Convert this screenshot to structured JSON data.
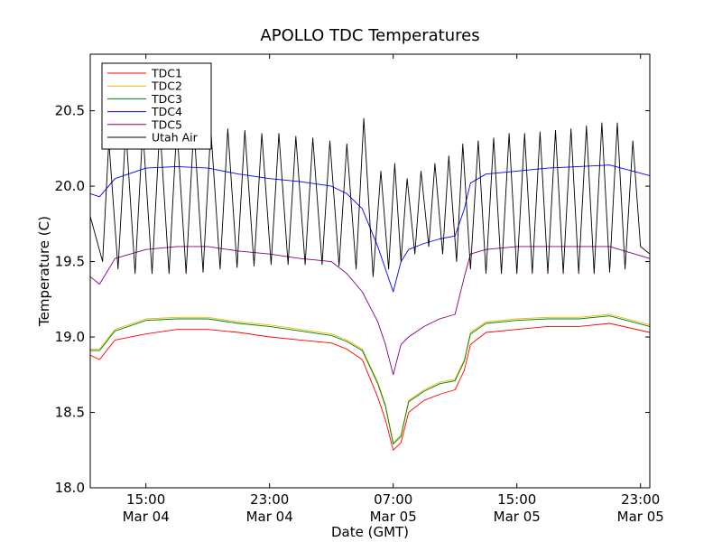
{
  "chart_data": {
    "type": "line",
    "title": "APOLLO TDC Temperatures",
    "xlabel": "Date (GMT)",
    "ylabel": "Temperature (C)",
    "x_unit": "hours since Mar 04 00:00 GMT",
    "xlim": [
      11.4,
      47.6
    ],
    "ylim": [
      18.0,
      20.875
    ],
    "yticks": [
      18.0,
      18.5,
      19.0,
      19.5,
      20.0,
      20.5
    ],
    "ytick_labels": [
      "18.0",
      "18.5",
      "19.0",
      "19.5",
      "20.0",
      "20.5"
    ],
    "xticks": [
      15,
      23,
      31,
      39,
      47
    ],
    "xtick_labels": [
      {
        "time": "15:00",
        "date": "Mar 04"
      },
      {
        "time": "23:00",
        "date": "Mar 04"
      },
      {
        "time": "07:00",
        "date": "Mar 05"
      },
      {
        "time": "15:00",
        "date": "Mar 05"
      },
      {
        "time": "23:00",
        "date": "Mar 05"
      }
    ],
    "grid": false,
    "legend_position": "top-left",
    "series": [
      {
        "name": "TDC1",
        "color": "#ff0000",
        "points": [
          [
            11.4,
            18.88
          ],
          [
            12.0,
            18.85
          ],
          [
            13,
            18.98
          ],
          [
            15,
            19.02
          ],
          [
            17,
            19.05
          ],
          [
            19,
            19.05
          ],
          [
            21,
            19.03
          ],
          [
            23,
            19.0
          ],
          [
            25,
            18.98
          ],
          [
            27,
            18.96
          ],
          [
            28,
            18.92
          ],
          [
            29,
            18.85
          ],
          [
            30,
            18.6
          ],
          [
            30.5,
            18.45
          ],
          [
            31,
            18.25
          ],
          [
            31.5,
            18.3
          ],
          [
            32,
            18.5
          ],
          [
            33,
            18.58
          ],
          [
            34,
            18.62
          ],
          [
            35,
            18.65
          ],
          [
            35.6,
            18.78
          ],
          [
            36,
            18.95
          ],
          [
            37,
            19.03
          ],
          [
            39,
            19.05
          ],
          [
            41,
            19.07
          ],
          [
            43,
            19.07
          ],
          [
            45,
            19.09
          ],
          [
            47.6,
            19.03
          ]
        ]
      },
      {
        "name": "TDC2",
        "color": "#e8b800",
        "points": [
          [
            11.4,
            18.92
          ],
          [
            12.0,
            18.92
          ],
          [
            13,
            19.05
          ],
          [
            15,
            19.12
          ],
          [
            17,
            19.13
          ],
          [
            19,
            19.13
          ],
          [
            21,
            19.1
          ],
          [
            23,
            19.08
          ],
          [
            25,
            19.05
          ],
          [
            27,
            19.02
          ],
          [
            28,
            18.98
          ],
          [
            29,
            18.92
          ],
          [
            30,
            18.7
          ],
          [
            30.5,
            18.55
          ],
          [
            31,
            18.3
          ],
          [
            31.5,
            18.35
          ],
          [
            32,
            18.58
          ],
          [
            33,
            18.65
          ],
          [
            34,
            18.7
          ],
          [
            35,
            18.72
          ],
          [
            35.6,
            18.85
          ],
          [
            36,
            19.03
          ],
          [
            37,
            19.1
          ],
          [
            39,
            19.12
          ],
          [
            41,
            19.13
          ],
          [
            43,
            19.13
          ],
          [
            45,
            19.15
          ],
          [
            47.6,
            19.08
          ]
        ]
      },
      {
        "name": "TDC3",
        "color": "#008000",
        "points": [
          [
            11.4,
            18.91
          ],
          [
            12.0,
            18.91
          ],
          [
            13,
            19.04
          ],
          [
            15,
            19.11
          ],
          [
            17,
            19.12
          ],
          [
            19,
            19.12
          ],
          [
            21,
            19.09
          ],
          [
            23,
            19.07
          ],
          [
            25,
            19.04
          ],
          [
            27,
            19.01
          ],
          [
            28,
            18.97
          ],
          [
            29,
            18.91
          ],
          [
            30,
            18.69
          ],
          [
            30.5,
            18.54
          ],
          [
            31,
            18.29
          ],
          [
            31.5,
            18.34
          ],
          [
            32,
            18.57
          ],
          [
            33,
            18.64
          ],
          [
            34,
            18.69
          ],
          [
            35,
            18.71
          ],
          [
            35.6,
            18.84
          ],
          [
            36,
            19.02
          ],
          [
            37,
            19.09
          ],
          [
            39,
            19.11
          ],
          [
            41,
            19.12
          ],
          [
            43,
            19.12
          ],
          [
            45,
            19.14
          ],
          [
            47.6,
            19.07
          ]
        ]
      },
      {
        "name": "TDC4",
        "color": "#0000ff",
        "points": [
          [
            11.4,
            19.95
          ],
          [
            12.0,
            19.93
          ],
          [
            13,
            20.05
          ],
          [
            15,
            20.12
          ],
          [
            17,
            20.13
          ],
          [
            19,
            20.12
          ],
          [
            21,
            20.08
          ],
          [
            23,
            20.05
          ],
          [
            25,
            20.03
          ],
          [
            27,
            20.0
          ],
          [
            28,
            19.95
          ],
          [
            29,
            19.85
          ],
          [
            30,
            19.6
          ],
          [
            30.5,
            19.45
          ],
          [
            31,
            19.3
          ],
          [
            31.5,
            19.5
          ],
          [
            32,
            19.58
          ],
          [
            33,
            19.62
          ],
          [
            34,
            19.65
          ],
          [
            35,
            19.67
          ],
          [
            35.6,
            19.85
          ],
          [
            36,
            20.02
          ],
          [
            37,
            20.08
          ],
          [
            39,
            20.1
          ],
          [
            41,
            20.12
          ],
          [
            43,
            20.13
          ],
          [
            45,
            20.14
          ],
          [
            47.6,
            20.07
          ]
        ]
      },
      {
        "name": "TDC5",
        "color": "#800080",
        "points": [
          [
            11.4,
            19.4
          ],
          [
            12.0,
            19.35
          ],
          [
            13,
            19.52
          ],
          [
            15,
            19.58
          ],
          [
            17,
            19.6
          ],
          [
            19,
            19.6
          ],
          [
            21,
            19.57
          ],
          [
            23,
            19.55
          ],
          [
            25,
            19.52
          ],
          [
            27,
            19.5
          ],
          [
            28,
            19.42
          ],
          [
            29,
            19.3
          ],
          [
            30,
            19.1
          ],
          [
            30.5,
            18.95
          ],
          [
            31,
            18.75
          ],
          [
            31.5,
            18.95
          ],
          [
            32,
            19.0
          ],
          [
            33,
            19.07
          ],
          [
            34,
            19.12
          ],
          [
            35,
            19.15
          ],
          [
            35.6,
            19.4
          ],
          [
            36,
            19.55
          ],
          [
            37,
            19.58
          ],
          [
            39,
            19.6
          ],
          [
            41,
            19.6
          ],
          [
            43,
            19.6
          ],
          [
            45,
            19.6
          ],
          [
            47.6,
            19.52
          ]
        ]
      },
      {
        "name": "Utah Air",
        "color": "#000000",
        "points": [
          [
            11.4,
            19.8
          ],
          [
            12.2,
            19.5
          ],
          [
            12.6,
            20.3
          ],
          [
            13.2,
            19.45
          ],
          [
            13.7,
            20.38
          ],
          [
            14.3,
            19.42
          ],
          [
            14.8,
            20.38
          ],
          [
            15.4,
            19.42
          ],
          [
            15.9,
            20.4
          ],
          [
            16.5,
            19.42
          ],
          [
            17.0,
            20.4
          ],
          [
            17.6,
            19.42
          ],
          [
            18.1,
            20.4
          ],
          [
            18.7,
            19.43
          ],
          [
            19.2,
            20.38
          ],
          [
            19.8,
            19.45
          ],
          [
            20.3,
            20.38
          ],
          [
            20.9,
            19.46
          ],
          [
            21.4,
            20.37
          ],
          [
            22.0,
            19.47
          ],
          [
            22.5,
            20.35
          ],
          [
            23.1,
            19.48
          ],
          [
            23.6,
            20.35
          ],
          [
            24.2,
            19.48
          ],
          [
            24.7,
            20.33
          ],
          [
            25.3,
            19.48
          ],
          [
            25.8,
            20.32
          ],
          [
            26.4,
            19.48
          ],
          [
            26.9,
            20.3
          ],
          [
            27.5,
            19.47
          ],
          [
            28.0,
            20.28
          ],
          [
            28.6,
            19.45
          ],
          [
            29.1,
            20.45
          ],
          [
            29.7,
            19.4
          ],
          [
            30.2,
            20.1
          ],
          [
            30.7,
            19.45
          ],
          [
            31.1,
            20.15
          ],
          [
            31.5,
            19.5
          ],
          [
            31.9,
            20.05
          ],
          [
            32.4,
            19.55
          ],
          [
            32.8,
            20.1
          ],
          [
            33.3,
            19.6
          ],
          [
            33.7,
            20.15
          ],
          [
            34.2,
            19.55
          ],
          [
            34.6,
            20.2
          ],
          [
            35.1,
            19.5
          ],
          [
            35.5,
            20.28
          ],
          [
            36.0,
            19.45
          ],
          [
            36.5,
            20.3
          ],
          [
            37.0,
            19.42
          ],
          [
            37.5,
            20.32
          ],
          [
            38.0,
            19.42
          ],
          [
            38.5,
            20.35
          ],
          [
            39.0,
            19.42
          ],
          [
            39.5,
            20.35
          ],
          [
            40.0,
            19.42
          ],
          [
            40.5,
            20.36
          ],
          [
            41.0,
            19.42
          ],
          [
            41.5,
            20.37
          ],
          [
            42.0,
            19.42
          ],
          [
            42.5,
            20.38
          ],
          [
            43.0,
            19.42
          ],
          [
            43.5,
            20.4
          ],
          [
            44.0,
            19.42
          ],
          [
            44.5,
            20.42
          ],
          [
            45.0,
            19.43
          ],
          [
            45.5,
            20.42
          ],
          [
            46.0,
            19.45
          ],
          [
            46.5,
            20.3
          ],
          [
            47.0,
            19.6
          ],
          [
            47.6,
            19.55
          ]
        ]
      }
    ]
  }
}
